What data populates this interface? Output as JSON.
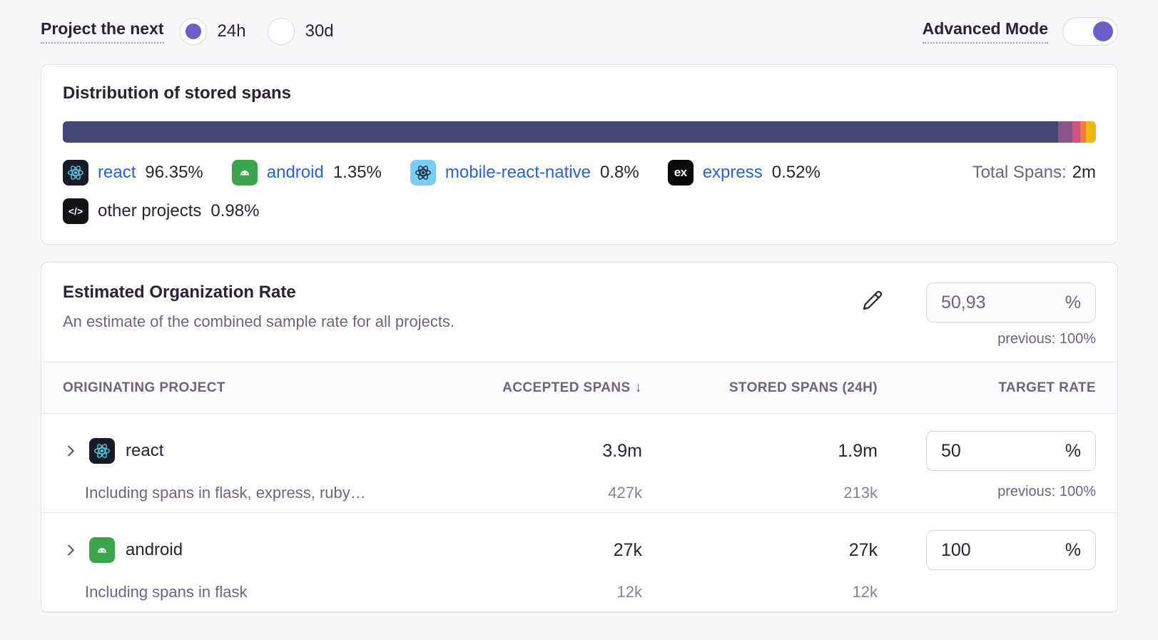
{
  "controls": {
    "project_next_label": "Project the next",
    "duration_options": [
      {
        "label": "24h",
        "selected": true
      },
      {
        "label": "30d",
        "selected": false
      }
    ],
    "advanced_mode_label": "Advanced Mode",
    "advanced_mode_enabled": true
  },
  "distribution": {
    "title": "Distribution of stored spans",
    "total_spans_label": "Total Spans:",
    "total_spans_value": "2m",
    "segments": [
      {
        "name": "react",
        "pct": 96.35,
        "pct_label": "96.35%",
        "color": "#444674",
        "icon": "react-icon"
      },
      {
        "name": "android",
        "pct": 1.35,
        "pct_label": "1.35%",
        "color": "#8B5589",
        "icon": "android-icon"
      },
      {
        "name": "mobile-react-native",
        "pct": 0.8,
        "pct_label": "0.8%",
        "color": "#D35181",
        "icon": "react-native-icon"
      },
      {
        "name": "express",
        "pct": 0.52,
        "pct_label": "0.52%",
        "color": "#EF7D44",
        "icon": "express-icon"
      },
      {
        "name": "other projects",
        "pct": 0.98,
        "pct_label": "0.98%",
        "color": "#EDB813",
        "icon": "code-icon"
      }
    ]
  },
  "org_rate": {
    "title": "Estimated Organization Rate",
    "description": "An estimate of the combined sample rate for all projects.",
    "value": "50,93",
    "unit": "%",
    "previous": "previous: 100%"
  },
  "table": {
    "headers": {
      "project": "ORIGINATING PROJECT",
      "accepted": "ACCEPTED SPANS",
      "sort_arrow": "↓",
      "stored": "STORED SPANS (24H)",
      "target": "TARGET RATE"
    },
    "rows": [
      {
        "project": "react",
        "icon": "react-icon",
        "accepted": "3.9m",
        "stored": "1.9m",
        "target_value": "50",
        "unit": "%",
        "sub_note": "Including spans in flask, express, ruby…",
        "sub_accepted": "427k",
        "sub_stored": "213k",
        "previous": "previous: 100%"
      },
      {
        "project": "android",
        "icon": "android-icon",
        "accepted": "27k",
        "stored": "27k",
        "target_value": "100",
        "unit": "%",
        "sub_note": "Including spans in flask",
        "sub_accepted": "12k",
        "sub_stored": "12k",
        "previous": ""
      }
    ]
  }
}
